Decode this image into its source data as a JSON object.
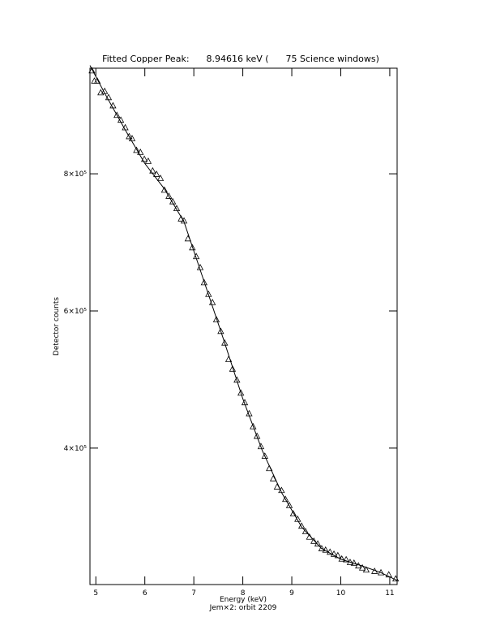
{
  "chart_data": {
    "type": "scatter",
    "title": "Fitted Copper Peak:      8.94616 keV (      75 Science windows)",
    "x_label": "Energy (keV)",
    "footnote": "Jem×2: orbit 2209",
    "y_label": "Detector counts",
    "xlim": [
      4.88,
      11.15
    ],
    "ylim": [
      201000,
      954000
    ],
    "xticks": [
      5,
      6,
      7,
      8,
      9,
      10,
      11
    ],
    "yticks": [
      {
        "value": 400000,
        "label": "4×10⁵"
      },
      {
        "value": 600000,
        "label": "6×10⁵"
      },
      {
        "value": 800000,
        "label": "8×10⁵"
      }
    ],
    "color": "#000000",
    "series": [
      {
        "type": "scatter",
        "marker": "triangle",
        "x": [
          4.92,
          4.97,
          5.03,
          5.1,
          5.18,
          5.26,
          5.35,
          5.43,
          5.51,
          5.6,
          5.68,
          5.74,
          5.83,
          5.91,
          5.99,
          6.07,
          6.16,
          6.24,
          6.32,
          6.4,
          6.49,
          6.57,
          6.65,
          6.74,
          6.8,
          6.88,
          6.97,
          7.05,
          7.13,
          7.21,
          7.3,
          7.38,
          7.46,
          7.55,
          7.63,
          7.71,
          7.79,
          7.88,
          7.96,
          8.04,
          8.13,
          8.21,
          8.29,
          8.37,
          8.45,
          8.54,
          8.62,
          8.7,
          8.79,
          8.87,
          8.95,
          9.03,
          9.12,
          9.2,
          9.28,
          9.36,
          9.45,
          9.53,
          9.61,
          9.69,
          9.78,
          9.86,
          9.94,
          10.02,
          10.11,
          10.19,
          10.27,
          10.36,
          10.44,
          10.52,
          10.69,
          10.82,
          10.98,
          11.12
        ],
        "values": [
          950000,
          935000,
          935000,
          918000,
          920000,
          911000,
          899000,
          885000,
          878000,
          867000,
          854000,
          851000,
          834000,
          831000,
          821000,
          818000,
          804000,
          799000,
          793000,
          776000,
          767000,
          759000,
          749000,
          734000,
          731000,
          705000,
          692000,
          679000,
          663000,
          641000,
          624000,
          612000,
          587000,
          570000,
          553000,
          529000,
          515000,
          499000,
          480000,
          466000,
          450000,
          431000,
          417000,
          402000,
          388000,
          370000,
          355000,
          343000,
          338000,
          325000,
          316000,
          304000,
          296000,
          286000,
          278000,
          270000,
          264000,
          260000,
          253000,
          251000,
          248000,
          245000,
          243000,
          238000,
          237000,
          233000,
          232000,
          228000,
          225000,
          222000,
          220000,
          218000,
          215000,
          209000
        ]
      },
      {
        "type": "line",
        "x": [
          4.88,
          5.2,
          5.6,
          6.0,
          6.4,
          6.8,
          7.2,
          7.6,
          8.0,
          8.4,
          8.8,
          9.2,
          9.6,
          10.0,
          10.4,
          10.8,
          11.15
        ],
        "values": [
          958000,
          915000,
          864000,
          815000,
          778000,
          730000,
          645000,
          560000,
          472000,
          396000,
          334000,
          285000,
          254000,
          238000,
          229000,
          219000,
          207000
        ]
      }
    ]
  }
}
